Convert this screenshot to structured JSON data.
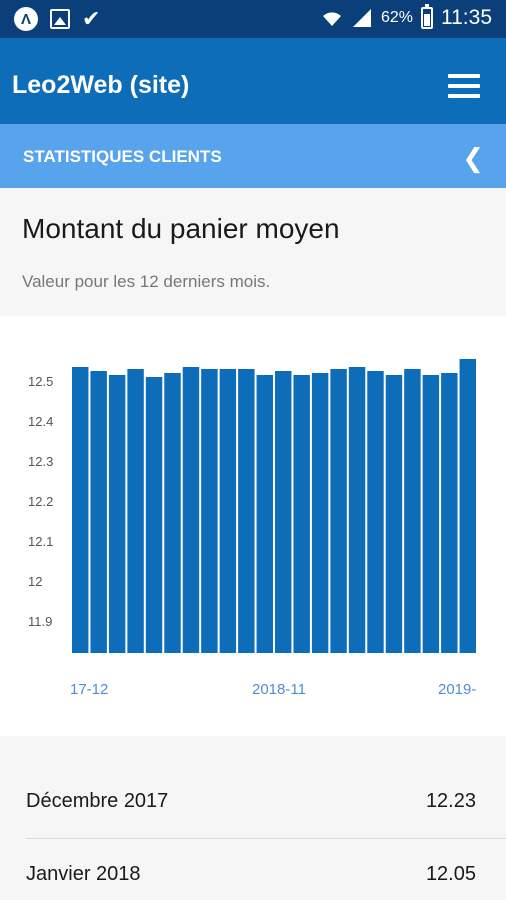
{
  "status_bar": {
    "battery": "62%",
    "time": "11:35",
    "icons": [
      "app-a-icon",
      "image-icon",
      "check-download-icon",
      "wifi-icon",
      "signal-icon",
      "battery-icon"
    ]
  },
  "app_bar": {
    "title": "Leo2Web (site)",
    "menu_icon": "hamburger-menu-icon"
  },
  "section_bar": {
    "title": "STATISTIQUES CLIENTS",
    "back_icon": "chevron-left-icon"
  },
  "card": {
    "title": "Montant du panier moyen",
    "subtitle": "Valeur pour les 12 derniers mois."
  },
  "colors": {
    "status_bar": "#0b3f7a",
    "app_bar": "#0e6db8",
    "section_bar": "#58a4ec",
    "bar": "#0e6db8",
    "tick_label": "#4f8fcf"
  },
  "chart_data": {
    "type": "bar",
    "y_ticks": [
      "12.5",
      "12.4",
      "12.3",
      "12.2",
      "12.1",
      "12",
      "11.9"
    ],
    "x_ticks": [
      "17-12",
      "2018-11",
      "2019-"
    ],
    "values": [
      12.535,
      12.525,
      12.515,
      12.53,
      12.51,
      12.52,
      12.535,
      12.53,
      12.53,
      12.53,
      12.515,
      12.525,
      12.515,
      12.52,
      12.53,
      12.535,
      12.525,
      12.515,
      12.53,
      12.515,
      12.52,
      12.555
    ],
    "ylim": [
      11.82,
      12.6
    ]
  },
  "table": {
    "rows": [
      {
        "label": "Décembre 2017",
        "value": "12.23"
      },
      {
        "label": "Janvier 2018",
        "value": "12.05"
      }
    ]
  }
}
